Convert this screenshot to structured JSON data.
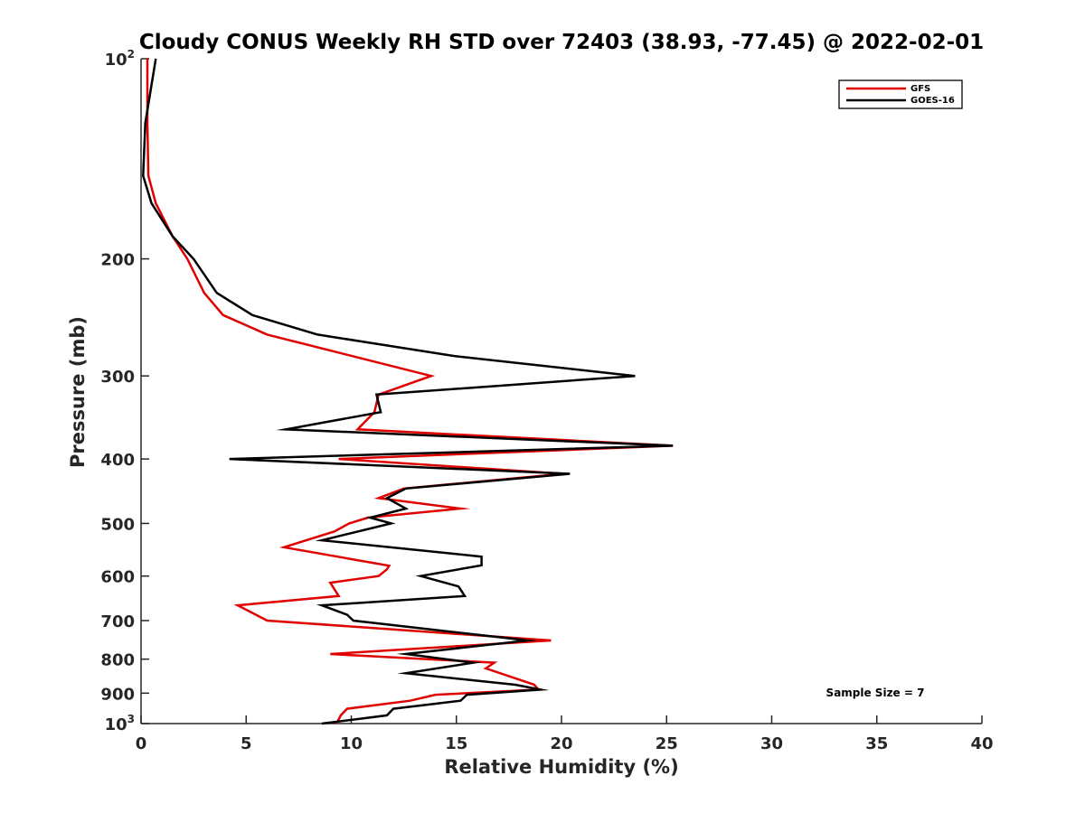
{
  "chart_data": {
    "type": "line",
    "title": "Cloudy CONUS Weekly RH STD over 72403 (38.93, -77.45) @ 2022-02-01",
    "xlabel": "Relative Humidity (%)",
    "ylabel": "Pressure (mb)",
    "xlim": [
      0,
      40
    ],
    "ylim": [
      100,
      1000
    ],
    "y_scale": "log",
    "y_reversed": true,
    "grid": false,
    "legend_position": "top-right",
    "x_ticks": [
      "0",
      "5",
      "10",
      "15",
      "20",
      "25",
      "30",
      "35",
      "40"
    ],
    "x_tick_values": [
      0,
      5,
      10,
      15,
      20,
      25,
      30,
      35,
      40
    ],
    "y_tick_values": [
      100,
      200,
      300,
      400,
      500,
      600,
      700,
      800,
      900,
      1000
    ],
    "y_ticks": [
      {
        "base": "10",
        "exp": "2"
      },
      {
        "base": "200",
        "exp": ""
      },
      {
        "base": "300",
        "exp": ""
      },
      {
        "base": "400",
        "exp": ""
      },
      {
        "base": "500",
        "exp": ""
      },
      {
        "base": "600",
        "exp": ""
      },
      {
        "base": "700",
        "exp": ""
      },
      {
        "base": "800",
        "exp": ""
      },
      {
        "base": "900",
        "exp": ""
      },
      {
        "base": "10",
        "exp": "3"
      }
    ],
    "annotation": "Sample Size = 7",
    "series": [
      {
        "name": "GFS",
        "color": "#e00000",
        "points": [
          [
            0.3,
            100
          ],
          [
            0.3,
            125
          ],
          [
            0.35,
            150
          ],
          [
            0.7,
            165
          ],
          [
            1.5,
            185
          ],
          [
            2.2,
            200
          ],
          [
            3.0,
            225
          ],
          [
            3.9,
            243
          ],
          [
            6.0,
            260
          ],
          [
            13.8,
            300
          ],
          [
            11.3,
            320
          ],
          [
            11.1,
            340
          ],
          [
            10.3,
            361
          ],
          [
            25.3,
            382
          ],
          [
            9.4,
            400
          ],
          [
            20.1,
            421
          ],
          [
            12.5,
            443
          ],
          [
            11.3,
            458
          ],
          [
            15.2,
            475
          ],
          [
            10.8,
            490
          ],
          [
            9.9,
            500
          ],
          [
            9.2,
            514
          ],
          [
            6.8,
            543
          ],
          [
            11.8,
            579
          ],
          [
            11.7,
            586
          ],
          [
            11.3,
            600
          ],
          [
            9.0,
            614
          ],
          [
            9.4,
            643
          ],
          [
            4.6,
            664
          ],
          [
            6.0,
            700
          ],
          [
            19.5,
            750
          ],
          [
            9.0,
            786
          ],
          [
            16.8,
            810
          ],
          [
            16.4,
            826
          ],
          [
            18.7,
            874
          ],
          [
            18.9,
            889
          ],
          [
            14.0,
            905
          ],
          [
            12.8,
            924
          ],
          [
            9.8,
            950
          ],
          [
            9.5,
            972
          ],
          [
            9.3,
            1000
          ]
        ]
      },
      {
        "name": "GOES-16",
        "color": "#000000",
        "points": [
          [
            0.7,
            100
          ],
          [
            0.2,
            125
          ],
          [
            0.1,
            150
          ],
          [
            0.5,
            165
          ],
          [
            1.5,
            185
          ],
          [
            2.5,
            200
          ],
          [
            3.6,
            225
          ],
          [
            5.3,
            243
          ],
          [
            8.4,
            260
          ],
          [
            14.9,
            280
          ],
          [
            23.5,
            300
          ],
          [
            11.2,
            320
          ],
          [
            11.4,
            340
          ],
          [
            6.9,
            361
          ],
          [
            25.3,
            382
          ],
          [
            4.2,
            400
          ],
          [
            20.4,
            421
          ],
          [
            12.6,
            443
          ],
          [
            11.7,
            458
          ],
          [
            12.6,
            475
          ],
          [
            10.9,
            490
          ],
          [
            11.9,
            500
          ],
          [
            8.6,
            530
          ],
          [
            16.2,
            561
          ],
          [
            16.2,
            578
          ],
          [
            13.3,
            600
          ],
          [
            15.1,
            622
          ],
          [
            15.4,
            643
          ],
          [
            8.6,
            664
          ],
          [
            9.8,
            686
          ],
          [
            10.1,
            700
          ],
          [
            18.4,
            750
          ],
          [
            12.6,
            786
          ],
          [
            15.8,
            810
          ],
          [
            12.6,
            840
          ],
          [
            17.8,
            874
          ],
          [
            19.0,
            889
          ],
          [
            15.5,
            905
          ],
          [
            15.2,
            924
          ],
          [
            12.0,
            950
          ],
          [
            11.7,
            972
          ],
          [
            8.6,
            1000
          ]
        ]
      }
    ]
  }
}
